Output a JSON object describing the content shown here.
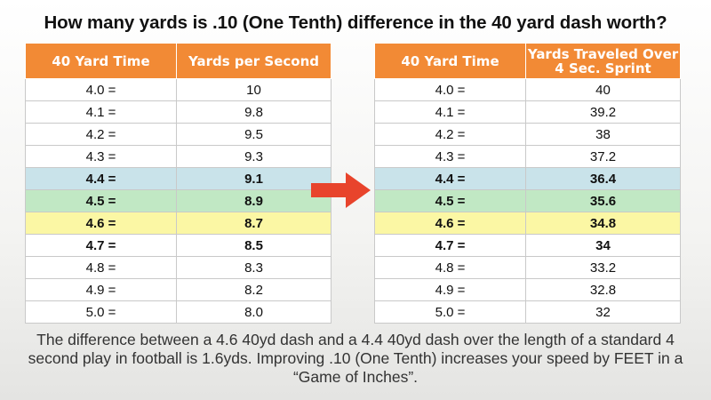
{
  "title": "How many yards is .10 (One Tenth) difference in the 40 yard dash worth?",
  "left_table": {
    "headers": [
      "40 Yard Time",
      "Yards per Second"
    ],
    "rows": [
      {
        "time": "4.0 =",
        "value": "10",
        "highlight": "none"
      },
      {
        "time": "4.1 =",
        "value": "9.8",
        "highlight": "none"
      },
      {
        "time": "4.2 =",
        "value": "9.5",
        "highlight": "none"
      },
      {
        "time": "4.3 =",
        "value": "9.3",
        "highlight": "none"
      },
      {
        "time": "4.4 =",
        "value": "9.1",
        "highlight": "blue"
      },
      {
        "time": "4.5 =",
        "value": "8.9",
        "highlight": "green"
      },
      {
        "time": "4.6 =",
        "value": "8.7",
        "highlight": "yellow"
      },
      {
        "time": "4.7 =",
        "value": "8.5",
        "highlight": "bold"
      },
      {
        "time": "4.8 =",
        "value": "8.3",
        "highlight": "none"
      },
      {
        "time": "4.9 =",
        "value": "8.2",
        "highlight": "none"
      },
      {
        "time": "5.0 =",
        "value": "8.0",
        "highlight": "none"
      }
    ]
  },
  "right_table": {
    "headers": [
      "40 Yard Time",
      "Yards Traveled Over 4 Sec. Sprint"
    ],
    "rows": [
      {
        "time": "4.0 =",
        "value": "40",
        "highlight": "none"
      },
      {
        "time": "4.1 =",
        "value": "39.2",
        "highlight": "none"
      },
      {
        "time": "4.2 =",
        "value": "38",
        "highlight": "none"
      },
      {
        "time": "4.3 =",
        "value": "37.2",
        "highlight": "none"
      },
      {
        "time": "4.4 =",
        "value": "36.4",
        "highlight": "blue"
      },
      {
        "time": "4.5 =",
        "value": "35.6",
        "highlight": "green"
      },
      {
        "time": "4.6 =",
        "value": "34.8",
        "highlight": "yellow"
      },
      {
        "time": "4.7 =",
        "value": "34",
        "highlight": "bold"
      },
      {
        "time": "4.8 =",
        "value": "33.2",
        "highlight": "none"
      },
      {
        "time": "4.9 =",
        "value": "32.8",
        "highlight": "none"
      },
      {
        "time": "5.0 =",
        "value": "32",
        "highlight": "none"
      }
    ]
  },
  "arrow": {
    "icon": "right-arrow-icon",
    "color": "#e8442c"
  },
  "colors": {
    "header": "#f28a35",
    "blue": "#c9e3ea",
    "green": "#c1e8c4",
    "yellow": "#fbf7a4"
  },
  "footer": "The difference between a 4.6 40yd dash and a 4.4 40yd dash over the length of a standard 4 second play in football is 1.6yds. Improving .10 (One Tenth) increases your speed by FEET in a “Game of Inches”."
}
